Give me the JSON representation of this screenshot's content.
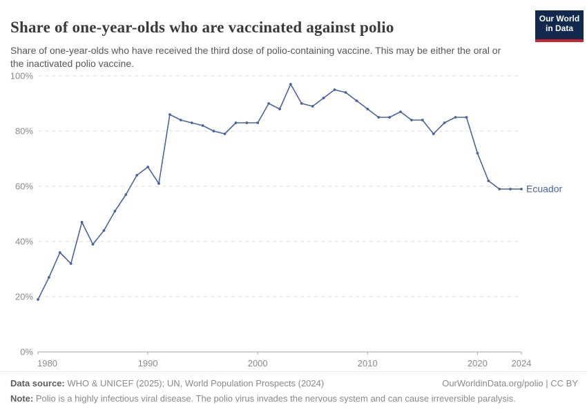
{
  "logo": {
    "line1": "Our World",
    "line2": "in Data",
    "bg_color": "#12294d",
    "stripe_color": "#c8242e"
  },
  "chart_data": {
    "type": "line",
    "title": "Share of one-year-olds who are vaccinated against polio",
    "subtitle": "Share of one-year-olds who have received the third dose of polio-containing vaccine. This may be either the oral or the inactivated polio vaccine.",
    "xlabel": "",
    "ylabel": "",
    "xlim": [
      1980,
      2024
    ],
    "ylim": [
      0,
      100
    ],
    "grid": "horizontal-dashed",
    "legend_position": "end-of-line-label",
    "x": [
      1980,
      1981,
      1982,
      1983,
      1984,
      1985,
      1986,
      1987,
      1988,
      1989,
      1990,
      1991,
      1992,
      1993,
      1994,
      1995,
      1996,
      1997,
      1998,
      1999,
      2000,
      2001,
      2002,
      2003,
      2004,
      2005,
      2006,
      2007,
      2008,
      2009,
      2010,
      2011,
      2012,
      2013,
      2014,
      2015,
      2016,
      2017,
      2018,
      2019,
      2020,
      2021,
      2022,
      2023,
      2024
    ],
    "series": [
      {
        "name": "Ecuador",
        "color": "#4763a3",
        "values": [
          19,
          27,
          36,
          32,
          47,
          39,
          44,
          51,
          57,
          64,
          67,
          61,
          86,
          84,
          83,
          82,
          80,
          79,
          83,
          83,
          83,
          90,
          88,
          97,
          90,
          89,
          92,
          95,
          94,
          91,
          88,
          85,
          85,
          87,
          84,
          84,
          79,
          83,
          85,
          85,
          72,
          62,
          59,
          59,
          59
        ]
      }
    ],
    "y_ticks": [
      {
        "value": 0,
        "label": "0%"
      },
      {
        "value": 20,
        "label": "20%"
      },
      {
        "value": 40,
        "label": "40%"
      },
      {
        "value": 60,
        "label": "60%"
      },
      {
        "value": 80,
        "label": "80%"
      },
      {
        "value": 100,
        "label": "100%"
      }
    ],
    "x_ticks": [
      {
        "value": 1980,
        "label": "1980"
      },
      {
        "value": 1990,
        "label": "1990"
      },
      {
        "value": 2000,
        "label": "2000"
      },
      {
        "value": 2010,
        "label": "2010"
      },
      {
        "value": 2020,
        "label": "2020"
      },
      {
        "value": 2024,
        "label": "2024"
      }
    ]
  },
  "footer": {
    "source_label": "Data source:",
    "source_text": " WHO & UNICEF (2025); UN, World Population Prospects (2024)",
    "rights_text": "OurWorldinData.org/polio | CC BY",
    "note_label": "Note:",
    "note_text": " Polio is a highly infectious viral disease. The polio virus invades the nervous system and can cause irreversible paralysis."
  }
}
